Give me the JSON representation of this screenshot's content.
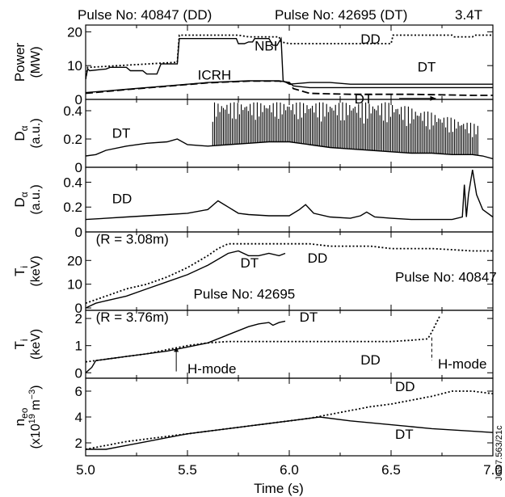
{
  "header": {
    "pulse_dd": "Pulse No: 40847 (DD)",
    "pulse_dt": "Pulse No: 42695 (DT)",
    "field": "3.4T"
  },
  "side_code": "JG97.563/21c",
  "colors": {
    "line": "#000000",
    "frame": "#000000",
    "background": "#ffffff"
  },
  "chart_data": {
    "type": "line",
    "xlabel": "Time (s)",
    "xlim": [
      5.0,
      7.0
    ],
    "xticks": [
      "5.0",
      "5.5",
      "6.0",
      "6.5",
      "7.0"
    ],
    "panels": [
      {
        "id": "power",
        "ylabel_main": "Power",
        "ylabel_unit": "(MW)",
        "ylim": [
          0,
          22
        ],
        "yticks": [
          0,
          10,
          20
        ],
        "annotations": [
          "NBI",
          "ICRH",
          "DD",
          "DT",
          "DT"
        ],
        "series": [
          {
            "name": "NBI",
            "style": "solid",
            "x": [
              5.0,
              5.01,
              5.02,
              5.1,
              5.12,
              5.2,
              5.22,
              5.28,
              5.3,
              5.35,
              5.37,
              5.45,
              5.46,
              5.74,
              5.75,
              5.78,
              5.8,
              5.82,
              5.83,
              5.9,
              5.92,
              5.94,
              5.96,
              5.97,
              6.0,
              6.1,
              6.2,
              6.3,
              6.5,
              6.7,
              6.9,
              7.0
            ],
            "y": [
              6,
              9,
              8.5,
              9,
              9.5,
              9.5,
              8.5,
              8.5,
              7.5,
              7.5,
              10.5,
              10.5,
              18,
              18,
              16.5,
              16.5,
              17,
              17,
              18,
              18,
              16,
              16,
              18,
              5.5,
              4.5,
              5,
              5,
              4.5,
              4.5,
              4.5,
              4.5,
              4.5
            ]
          },
          {
            "name": "NBI DD",
            "style": "dotted",
            "x": [
              5.0,
              5.01,
              5.02,
              5.45,
              5.46,
              5.75,
              5.8,
              5.95,
              5.96,
              6.0,
              6.1,
              6.5,
              6.51,
              6.8,
              6.81,
              6.9,
              6.91,
              7.0
            ],
            "y": [
              6,
              9.5,
              9.5,
              11,
              19,
              19,
              18.5,
              18.5,
              17,
              16.5,
              16.5,
              16.5,
              19,
              19,
              18.5,
              18.5,
              19,
              19
            ]
          },
          {
            "name": "ICRH DT",
            "style": "solid",
            "x": [
              5.0,
              5.2,
              5.4,
              5.6,
              5.8,
              5.95,
              6.0,
              6.02,
              6.1,
              6.3,
              6.6,
              6.9,
              7.0
            ],
            "y": [
              2,
              3,
              4,
              5,
              5.5,
              5.5,
              5,
              4,
              3.5,
              3.5,
              3.5,
              3.5,
              3.5
            ]
          },
          {
            "name": "ICRH DD",
            "style": "dashed",
            "x": [
              5.0,
              5.2,
              5.4,
              5.6,
              5.8,
              5.95,
              6.0,
              6.02,
              6.1,
              6.3,
              6.6,
              6.9,
              7.0
            ],
            "y": [
              1.8,
              2.9,
              3.9,
              4.9,
              5.4,
              5.4,
              5,
              3.2,
              1.8,
              1.5,
              1.5,
              1.2,
              1.2
            ]
          }
        ]
      },
      {
        "id": "dalpha_dt",
        "ylabel_main": "D",
        "ylabel_sub": "α",
        "ylabel_unit": "(a.u.)",
        "ylim": [
          0,
          0.48
        ],
        "yticks": [
          0,
          0.2,
          0.4
        ],
        "yticklabels": [
          "0",
          "0.2",
          "0.4"
        ],
        "annotations": [
          "DT"
        ],
        "series": [
          {
            "name": "DT",
            "style": "solid",
            "x": [
              5.0,
              5.05,
              5.1,
              5.2,
              5.3,
              5.4,
              5.45,
              5.5,
              5.6,
              5.7,
              5.8,
              5.9,
              6.0,
              6.1,
              6.2,
              6.3,
              6.4,
              6.5,
              6.6,
              6.7,
              6.8,
              6.9,
              6.95,
              7.0
            ],
            "y": [
              0.08,
              0.09,
              0.12,
              0.15,
              0.17,
              0.18,
              0.2,
              0.16,
              0.15,
              0.16,
              0.17,
              0.18,
              0.18,
              0.16,
              0.14,
              0.13,
              0.12,
              0.11,
              0.1,
              0.1,
              0.09,
              0.09,
              0.08,
              0.06
            ],
            "elm_region": [
              5.62,
              6.93
            ],
            "elm_count": 150,
            "elm_peak": 0.46
          }
        ]
      },
      {
        "id": "dalpha_dd",
        "ylabel_main": "D",
        "ylabel_sub": "α",
        "ylabel_unit": "(a.u.)",
        "ylim": [
          0,
          0.52
        ],
        "yticks": [
          0,
          0.2,
          0.4
        ],
        "yticklabels": [
          "0",
          "0.2",
          "0.4"
        ],
        "annotations": [
          "DD"
        ],
        "series": [
          {
            "name": "DD",
            "style": "solid",
            "x": [
              5.0,
              5.1,
              5.2,
              5.3,
              5.4,
              5.5,
              5.6,
              5.65,
              5.7,
              5.75,
              5.8,
              5.9,
              6.0,
              6.05,
              6.08,
              6.12,
              6.2,
              6.3,
              6.35,
              6.38,
              6.42,
              6.5,
              6.6,
              6.7,
              6.8,
              6.85,
              6.86,
              6.87,
              6.88,
              6.9,
              6.92,
              6.95,
              7.0
            ],
            "y": [
              0.1,
              0.11,
              0.12,
              0.13,
              0.14,
              0.15,
              0.18,
              0.25,
              0.2,
              0.15,
              0.14,
              0.13,
              0.13,
              0.18,
              0.22,
              0.15,
              0.12,
              0.11,
              0.13,
              0.16,
              0.12,
              0.11,
              0.1,
              0.1,
              0.1,
              0.12,
              0.38,
              0.12,
              0.3,
              0.5,
              0.3,
              0.18,
              0.12
            ]
          }
        ]
      },
      {
        "id": "ti_center",
        "ylabel_main": "T",
        "ylabel_sub": "i",
        "ylabel_unit": "(keV)",
        "ylim": [
          -1,
          32
        ],
        "yticks": [
          0,
          10,
          20
        ],
        "annotations": [
          "(R = 3.08m)",
          "DT",
          "DD",
          "Pulse No: 42695",
          "Pulse No: 40847"
        ],
        "series": [
          {
            "name": "DD",
            "style": "dotted",
            "x": [
              5.0,
              5.1,
              5.2,
              5.3,
              5.4,
              5.5,
              5.6,
              5.65,
              5.7,
              5.75,
              5.8,
              5.9,
              6.0,
              6.1,
              6.2,
              6.3,
              6.4,
              6.5,
              6.6,
              6.7,
              6.8,
              6.9,
              7.0
            ],
            "y": [
              2,
              5,
              8,
              10,
              13,
              17,
              22,
              25,
              27,
              27,
              27,
              27,
              27,
              27,
              26,
              26,
              26,
              25,
              25,
              25,
              24.5,
              24,
              24
            ]
          },
          {
            "name": "DT",
            "style": "solid",
            "x": [
              5.0,
              5.05,
              5.1,
              5.2,
              5.3,
              5.4,
              5.5,
              5.6,
              5.7,
              5.75,
              5.8,
              5.85,
              5.9,
              5.95,
              5.98
            ],
            "y": [
              0,
              2,
              3,
              5,
              8,
              11,
              14,
              18,
              23,
              24,
              22,
              22,
              23,
              22,
              23
            ]
          }
        ]
      },
      {
        "id": "ti_edge",
        "ylabel_main": "T",
        "ylabel_sub": "i",
        "ylabel_unit": "(keV)",
        "ylim": [
          -0.2,
          2.3
        ],
        "yticks": [
          0,
          1,
          2
        ],
        "annotations": [
          "(R = 3.76m)",
          "DT",
          "DD",
          "H-mode",
          "H-mode"
        ],
        "series": [
          {
            "name": "DD",
            "style": "dotted",
            "x": [
              5.0,
              5.1,
              5.2,
              5.3,
              5.4,
              5.5,
              5.6,
              5.7,
              5.8,
              5.9,
              6.0,
              6.1,
              6.2,
              6.3,
              6.4,
              6.5,
              6.6,
              6.68,
              6.7,
              6.72,
              6.74
            ],
            "y": [
              0.4,
              0.5,
              0.6,
              0.7,
              0.85,
              1.0,
              1.1,
              1.15,
              1.15,
              1.15,
              1.15,
              1.15,
              1.15,
              1.15,
              1.15,
              1.15,
              1.2,
              1.25,
              1.5,
              1.8,
              2.1
            ]
          },
          {
            "name": "DT",
            "style": "solid",
            "x": [
              5.0,
              5.03,
              5.05,
              5.1,
              5.2,
              5.3,
              5.4,
              5.5,
              5.6,
              5.7,
              5.8,
              5.85,
              5.9,
              5.92,
              5.95,
              5.98
            ],
            "y": [
              0,
              0.2,
              0.45,
              0.5,
              0.6,
              0.7,
              0.8,
              0.95,
              1.1,
              1.4,
              1.7,
              1.8,
              1.85,
              1.75,
              1.85,
              1.9
            ]
          }
        ]
      },
      {
        "id": "ne0",
        "ylabel_main": "n",
        "ylabel_sub": "eo",
        "ylabel_unit": "(x10",
        "ylabel_unit_sup": "19",
        "ylabel_unit_rest": " m",
        "ylabel_unit_sup2": "−3",
        "ylabel_unit_end": ")",
        "ylim": [
          1,
          7
        ],
        "yticks": [
          2,
          4,
          6
        ],
        "annotations": [
          "DD",
          "DT"
        ],
        "series": [
          {
            "name": "DD",
            "style": "dotted",
            "x": [
              5.0,
              5.1,
              5.2,
              5.3,
              5.4,
              5.5,
              5.6,
              5.7,
              5.8,
              5.9,
              6.0,
              6.1,
              6.2,
              6.3,
              6.4,
              6.5,
              6.6,
              6.7,
              6.8,
              6.9,
              7.0
            ],
            "y": [
              1.5,
              1.8,
              2.1,
              2.3,
              2.5,
              2.7,
              2.9,
              3.1,
              3.3,
              3.5,
              3.7,
              3.9,
              4.2,
              4.5,
              4.8,
              5.0,
              5.3,
              5.6,
              6.0,
              6.0,
              5.8
            ]
          },
          {
            "name": "DT",
            "style": "solid",
            "x": [
              5.0,
              5.1,
              5.2,
              5.3,
              5.4,
              5.5,
              5.6,
              5.7,
              5.8,
              5.9,
              6.0,
              6.1,
              6.15,
              6.3,
              6.5,
              6.7,
              6.9,
              7.0
            ],
            "y": [
              1.5,
              1.5,
              1.8,
              2.1,
              2.4,
              2.7,
              2.9,
              3.1,
              3.3,
              3.5,
              3.7,
              3.9,
              4.0,
              3.7,
              3.4,
              3.1,
              2.9,
              2.8
            ]
          }
        ]
      }
    ]
  }
}
